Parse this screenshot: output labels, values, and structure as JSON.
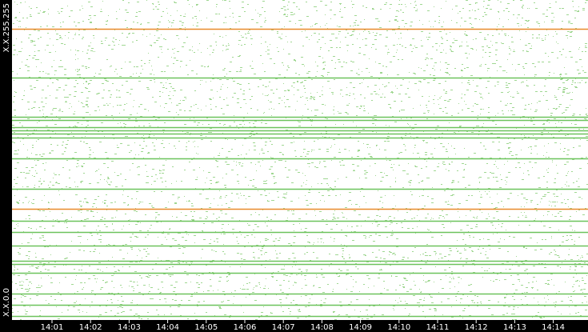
{
  "y_axis": {
    "top_label": "X.X.255.255",
    "bottom_label": "X.X.0.0"
  },
  "x_axis": {
    "ticks": [
      "14:01",
      "14:02",
      "14:03",
      "14:04",
      "14:05",
      "14:06",
      "14:07",
      "14:08",
      "14:09",
      "14:10",
      "14:11",
      "14:12",
      "14:13",
      "14:14"
    ]
  }
}
